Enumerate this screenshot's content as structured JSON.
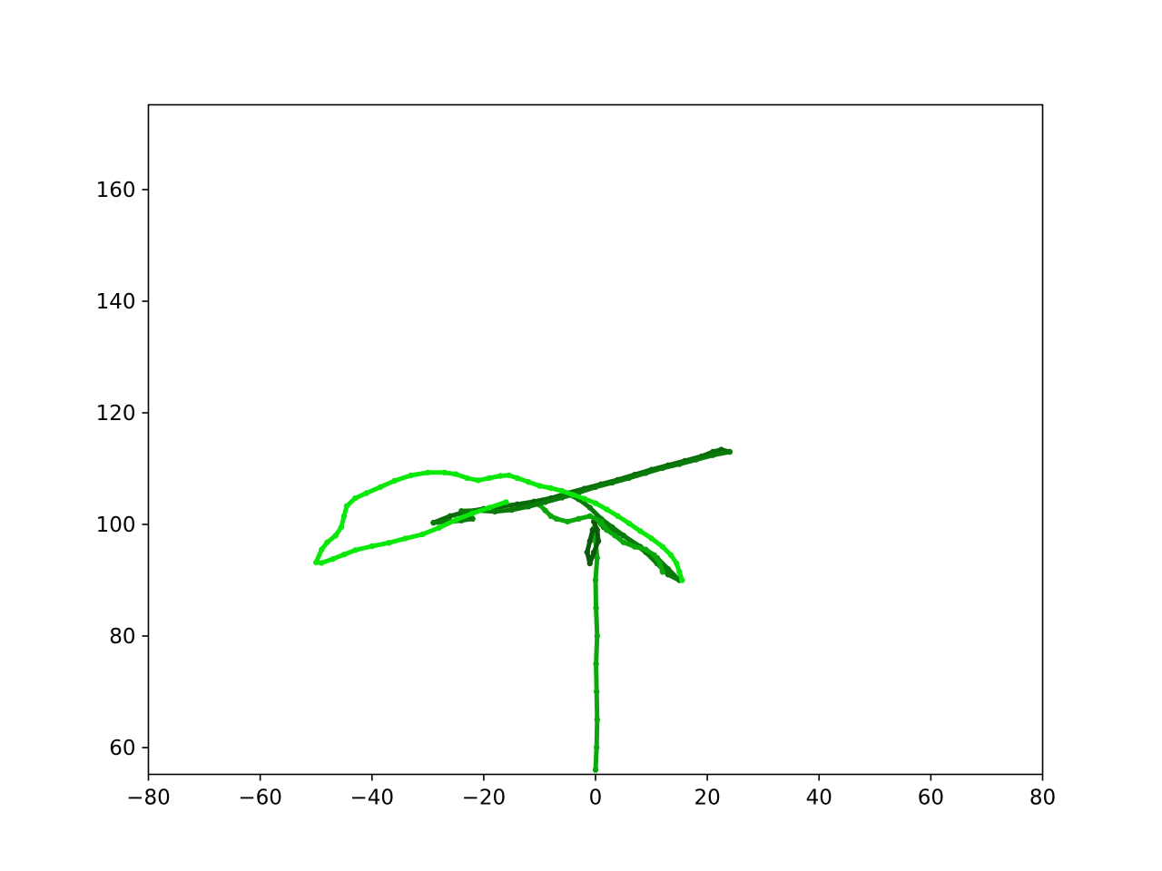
{
  "chart_data": {
    "type": "scatter",
    "title": "",
    "xlabel": "",
    "ylabel": "",
    "xlim": [
      -80,
      80
    ],
    "ylim": [
      55.2,
      175.2
    ],
    "xticks": [
      -80,
      -60,
      -40,
      -20,
      0,
      20,
      40,
      60,
      80
    ],
    "xtick_labels": [
      "−80",
      "−60",
      "−40",
      "−20",
      "0",
      "20",
      "40",
      "60",
      "80"
    ],
    "yticks": [
      60,
      80,
      100,
      120,
      140,
      160
    ],
    "ytick_labels": [
      "60",
      "80",
      "100",
      "120",
      "140",
      "160"
    ],
    "grid": false,
    "legend": "none",
    "colors": {
      "dark": "#0a5a0a",
      "mid": "#0a9a0a",
      "light": "#0ae80a",
      "axis": "#000000",
      "background": "#ffffff"
    },
    "series": [
      {
        "color": "#0aa80a",
        "points": [
          [
            0,
            56
          ],
          [
            0.2,
            60
          ],
          [
            0.3,
            65
          ],
          [
            0.2,
            70
          ],
          [
            0.1,
            75
          ],
          [
            0.3,
            80
          ],
          [
            0.1,
            85
          ],
          [
            0,
            90
          ],
          [
            0.3,
            94
          ],
          [
            0,
            97
          ],
          [
            -0.5,
            99
          ],
          [
            0.4,
            101
          ],
          [
            1,
            100
          ],
          [
            1.5,
            99.5
          ]
        ]
      },
      {
        "color": "#0a7a0a",
        "points": [
          [
            1.5,
            99.5
          ],
          [
            3,
            99
          ],
          [
            5,
            98
          ],
          [
            8,
            96
          ],
          [
            11,
            94
          ],
          [
            13,
            92
          ],
          [
            15,
            90
          ],
          [
            13,
            91
          ],
          [
            11,
            93
          ],
          [
            9,
            95
          ],
          [
            7,
            96.5
          ],
          [
            5,
            98
          ],
          [
            3,
            99.5
          ],
          [
            1,
            101
          ],
          [
            -1,
            103
          ],
          [
            -3,
            104.5
          ],
          [
            -5,
            105.5
          ]
        ]
      },
      {
        "color": "#0a5a0a",
        "points": [
          [
            -0.5,
            99
          ],
          [
            -1,
            97
          ],
          [
            -1.5,
            95
          ],
          [
            -1,
            93
          ],
          [
            -0.3,
            95
          ],
          [
            0.5,
            97
          ],
          [
            0.3,
            99
          ],
          [
            -0.3,
            100.5
          ]
        ]
      },
      {
        "color": "#0aa80a",
        "points": [
          [
            -10,
            103.5
          ],
          [
            -9,
            102.5
          ],
          [
            -8,
            101.5
          ],
          [
            -7,
            101
          ],
          [
            -5,
            100.5
          ],
          [
            -3,
            101
          ],
          [
            -1,
            101.5
          ],
          [
            1,
            100.5
          ],
          [
            2,
            99
          ],
          [
            3.5,
            98
          ],
          [
            5,
            96.8
          ],
          [
            7,
            96
          ],
          [
            9,
            95.5
          ],
          [
            10.5,
            94.5
          ],
          [
            11.5,
            93
          ],
          [
            12,
            91.5
          ]
        ]
      },
      {
        "color": "#0a6a0a",
        "points": [
          [
            -29,
            100.3
          ],
          [
            -26,
            101.5
          ],
          [
            -23,
            102.3
          ],
          [
            -20,
            102.8
          ],
          [
            -17,
            103.2
          ],
          [
            -14,
            103.6
          ],
          [
            -11,
            104.1
          ],
          [
            -8,
            104.7
          ],
          [
            -5,
            105.6
          ],
          [
            -2,
            106.4
          ],
          [
            1,
            107.2
          ],
          [
            4,
            108
          ],
          [
            7,
            108.9
          ],
          [
            10,
            109.8
          ],
          [
            13,
            110.6
          ],
          [
            16,
            111.4
          ],
          [
            19,
            112.2
          ],
          [
            21,
            113
          ],
          [
            22.5,
            113.4
          ],
          [
            24,
            113
          ]
        ]
      },
      {
        "color": "#0a7a0a",
        "points": [
          [
            -29,
            100.3
          ],
          [
            -26,
            100.5
          ],
          [
            -24,
            100.7
          ],
          [
            -22,
            101
          ],
          [
            -23,
            101.8
          ],
          [
            -24,
            102.4
          ],
          [
            -21,
            102.5
          ],
          [
            -18,
            102.3
          ],
          [
            -15,
            102.6
          ],
          [
            -12,
            103.2
          ],
          [
            -9,
            104
          ],
          [
            -6,
            104.8
          ],
          [
            -3,
            105.7
          ],
          [
            0,
            106.7
          ],
          [
            3,
            107.5
          ],
          [
            6,
            108.3
          ],
          [
            9,
            109.2
          ],
          [
            12,
            110.1
          ],
          [
            15,
            110.8
          ],
          [
            18,
            111.6
          ],
          [
            21,
            112.4
          ],
          [
            24,
            113
          ]
        ]
      },
      {
        "color": "#0ae80a",
        "points": [
          [
            -16,
            104
          ],
          [
            -19,
            103
          ],
          [
            -22,
            102
          ],
          [
            -25,
            100.8
          ],
          [
            -28,
            99.4
          ],
          [
            -31,
            98.2
          ],
          [
            -34,
            97.5
          ],
          [
            -37,
            96.7
          ],
          [
            -40,
            96.1
          ],
          [
            -43,
            95.4
          ],
          [
            -45,
            94.6
          ],
          [
            -47,
            93.8
          ],
          [
            -49,
            93.1
          ],
          [
            -50,
            93.2
          ],
          [
            -49,
            95.5
          ],
          [
            -48,
            96.8
          ],
          [
            -46.5,
            98
          ],
          [
            -45.5,
            99.5
          ],
          [
            -45,
            101.5
          ],
          [
            -44.5,
            103.3
          ],
          [
            -43,
            104.7
          ],
          [
            -41,
            105.6
          ],
          [
            -38.5,
            106.7
          ],
          [
            -36,
            107.8
          ],
          [
            -33,
            108.8
          ],
          [
            -30,
            109.3
          ],
          [
            -27,
            109.3
          ],
          [
            -25,
            109
          ],
          [
            -23,
            108.3
          ],
          [
            -21,
            107.9
          ],
          [
            -19,
            108.3
          ],
          [
            -17,
            108.7
          ],
          [
            -15.5,
            108.8
          ],
          [
            -14,
            108.3
          ],
          [
            -12,
            107.6
          ],
          [
            -10,
            106.9
          ],
          [
            -8,
            106.5
          ],
          [
            -6,
            106
          ],
          [
            -4,
            105.3
          ],
          [
            -2,
            104.6
          ],
          [
            0,
            103.8
          ],
          [
            2,
            102.7
          ],
          [
            4,
            101.5
          ],
          [
            6,
            100.2
          ],
          [
            8,
            98.8
          ],
          [
            10,
            97.5
          ],
          [
            12,
            96
          ],
          [
            13.5,
            94.5
          ],
          [
            14.5,
            93
          ],
          [
            15,
            91.5
          ],
          [
            15.5,
            90
          ]
        ]
      }
    ]
  }
}
